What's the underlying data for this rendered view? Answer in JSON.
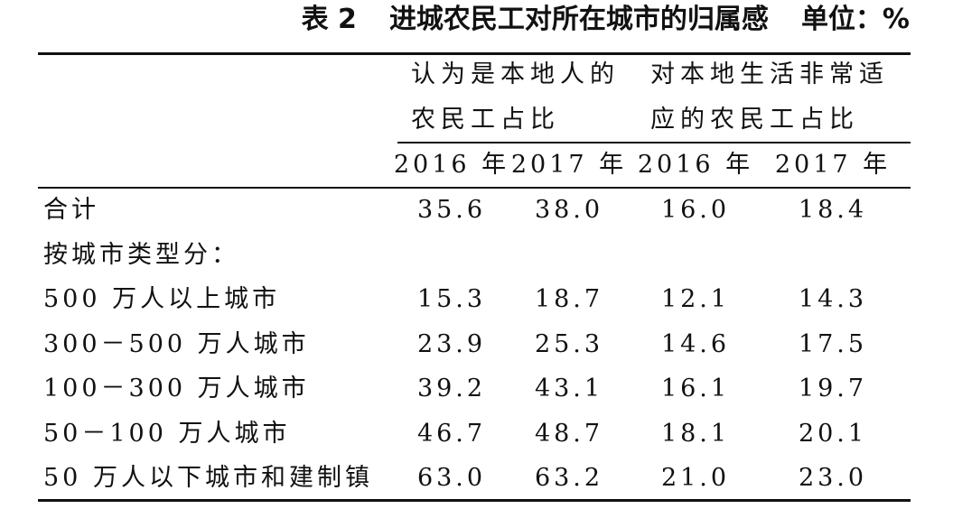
{
  "header": {
    "label": "表 2",
    "title": "进城农民工对所在城市的归属感",
    "unit": "单位：%"
  },
  "table": {
    "groups": [
      "认为是本地人的农民工占比",
      "对本地生活非常适应的农民工占比"
    ],
    "columns": [
      "2016 年",
      "2017 年",
      "2016 年",
      "2017 年"
    ],
    "rows": [
      [
        "合计",
        "35.6",
        "38.0",
        "16.0",
        "18.4"
      ],
      [
        "按城市类型分："
      ],
      [
        "500 万人以上城市",
        "15.3",
        "18.7",
        "12.1",
        "14.3"
      ],
      [
        "300－500 万人城市",
        "23.9",
        "25.3",
        "14.6",
        "17.5"
      ],
      [
        "100－300 万人城市",
        "39.2",
        "43.1",
        "16.1",
        "19.7"
      ],
      [
        "50－100 万人城市",
        "46.7",
        "48.7",
        "18.1",
        "20.1"
      ],
      [
        "50 万人以下城市和建制镇",
        "63.0",
        "63.2",
        "21.0",
        "23.0"
      ]
    ]
  }
}
